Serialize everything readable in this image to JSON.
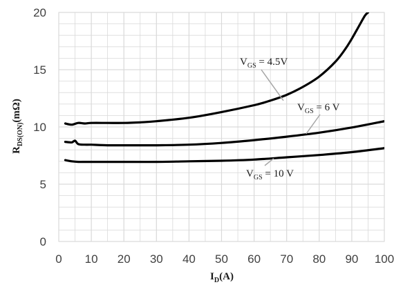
{
  "chart_data": {
    "type": "line",
    "title": "",
    "xlabel": {
      "main": "I",
      "sub": "D",
      "tail": "(A)"
    },
    "ylabel": {
      "main": "R",
      "sub": "DS(ON)",
      "tail": "(mΩ)"
    },
    "xlim": [
      0,
      100
    ],
    "ylim": [
      0,
      20
    ],
    "x_ticks": [
      "0",
      "10",
      "20",
      "30",
      "40",
      "50",
      "60",
      "70",
      "80",
      "90",
      "100"
    ],
    "y_ticks": [
      "0",
      "5",
      "10",
      "15",
      "20"
    ],
    "grid": true,
    "minor_grid": true,
    "line_color": "#000000",
    "grid_color": "#d9d9d9",
    "series": [
      {
        "name": "V_GS = 4.5V",
        "label": {
          "main": "V",
          "sub": "GS",
          "tail": " = 4.5V"
        },
        "x": [
          2,
          4,
          6,
          8,
          10,
          15,
          20,
          25,
          30,
          40,
          50,
          60,
          65,
          70,
          75,
          80,
          85,
          88,
          90,
          92,
          94,
          95
        ],
        "y": [
          10.3,
          10.2,
          10.35,
          10.3,
          10.35,
          10.35,
          10.35,
          10.4,
          10.5,
          10.8,
          11.3,
          11.9,
          12.3,
          12.8,
          13.5,
          14.4,
          15.7,
          16.8,
          17.7,
          18.7,
          19.7,
          20.0
        ]
      },
      {
        "name": "V_GS = 6 V",
        "label": {
          "main": "V",
          "sub": "GS",
          "tail": " = 6 V"
        },
        "x": [
          2,
          4,
          5,
          6,
          8,
          10,
          15,
          20,
          30,
          40,
          50,
          60,
          70,
          80,
          90,
          100
        ],
        "y": [
          8.7,
          8.65,
          8.8,
          8.5,
          8.45,
          8.45,
          8.4,
          8.4,
          8.4,
          8.45,
          8.6,
          8.85,
          9.15,
          9.5,
          9.95,
          10.5
        ]
      },
      {
        "name": "V_GS = 10 V",
        "label": {
          "main": "V",
          "sub": "GS",
          "tail": " = 10 V"
        },
        "x": [
          2,
          4,
          6,
          8,
          10,
          15,
          20,
          30,
          40,
          50,
          60,
          70,
          80,
          90,
          100
        ],
        "y": [
          7.1,
          7.0,
          6.95,
          6.95,
          6.95,
          6.95,
          6.95,
          6.95,
          7.0,
          7.05,
          7.15,
          7.35,
          7.55,
          7.8,
          8.15
        ]
      }
    ],
    "annotations": [
      {
        "series": 0,
        "arrow_to": [
          69,
          12.3
        ]
      },
      {
        "series": 1,
        "arrow_to": [
          76,
          9.4
        ]
      },
      {
        "series": 2,
        "arrow_to": [
          66,
          7.25
        ]
      }
    ]
  }
}
